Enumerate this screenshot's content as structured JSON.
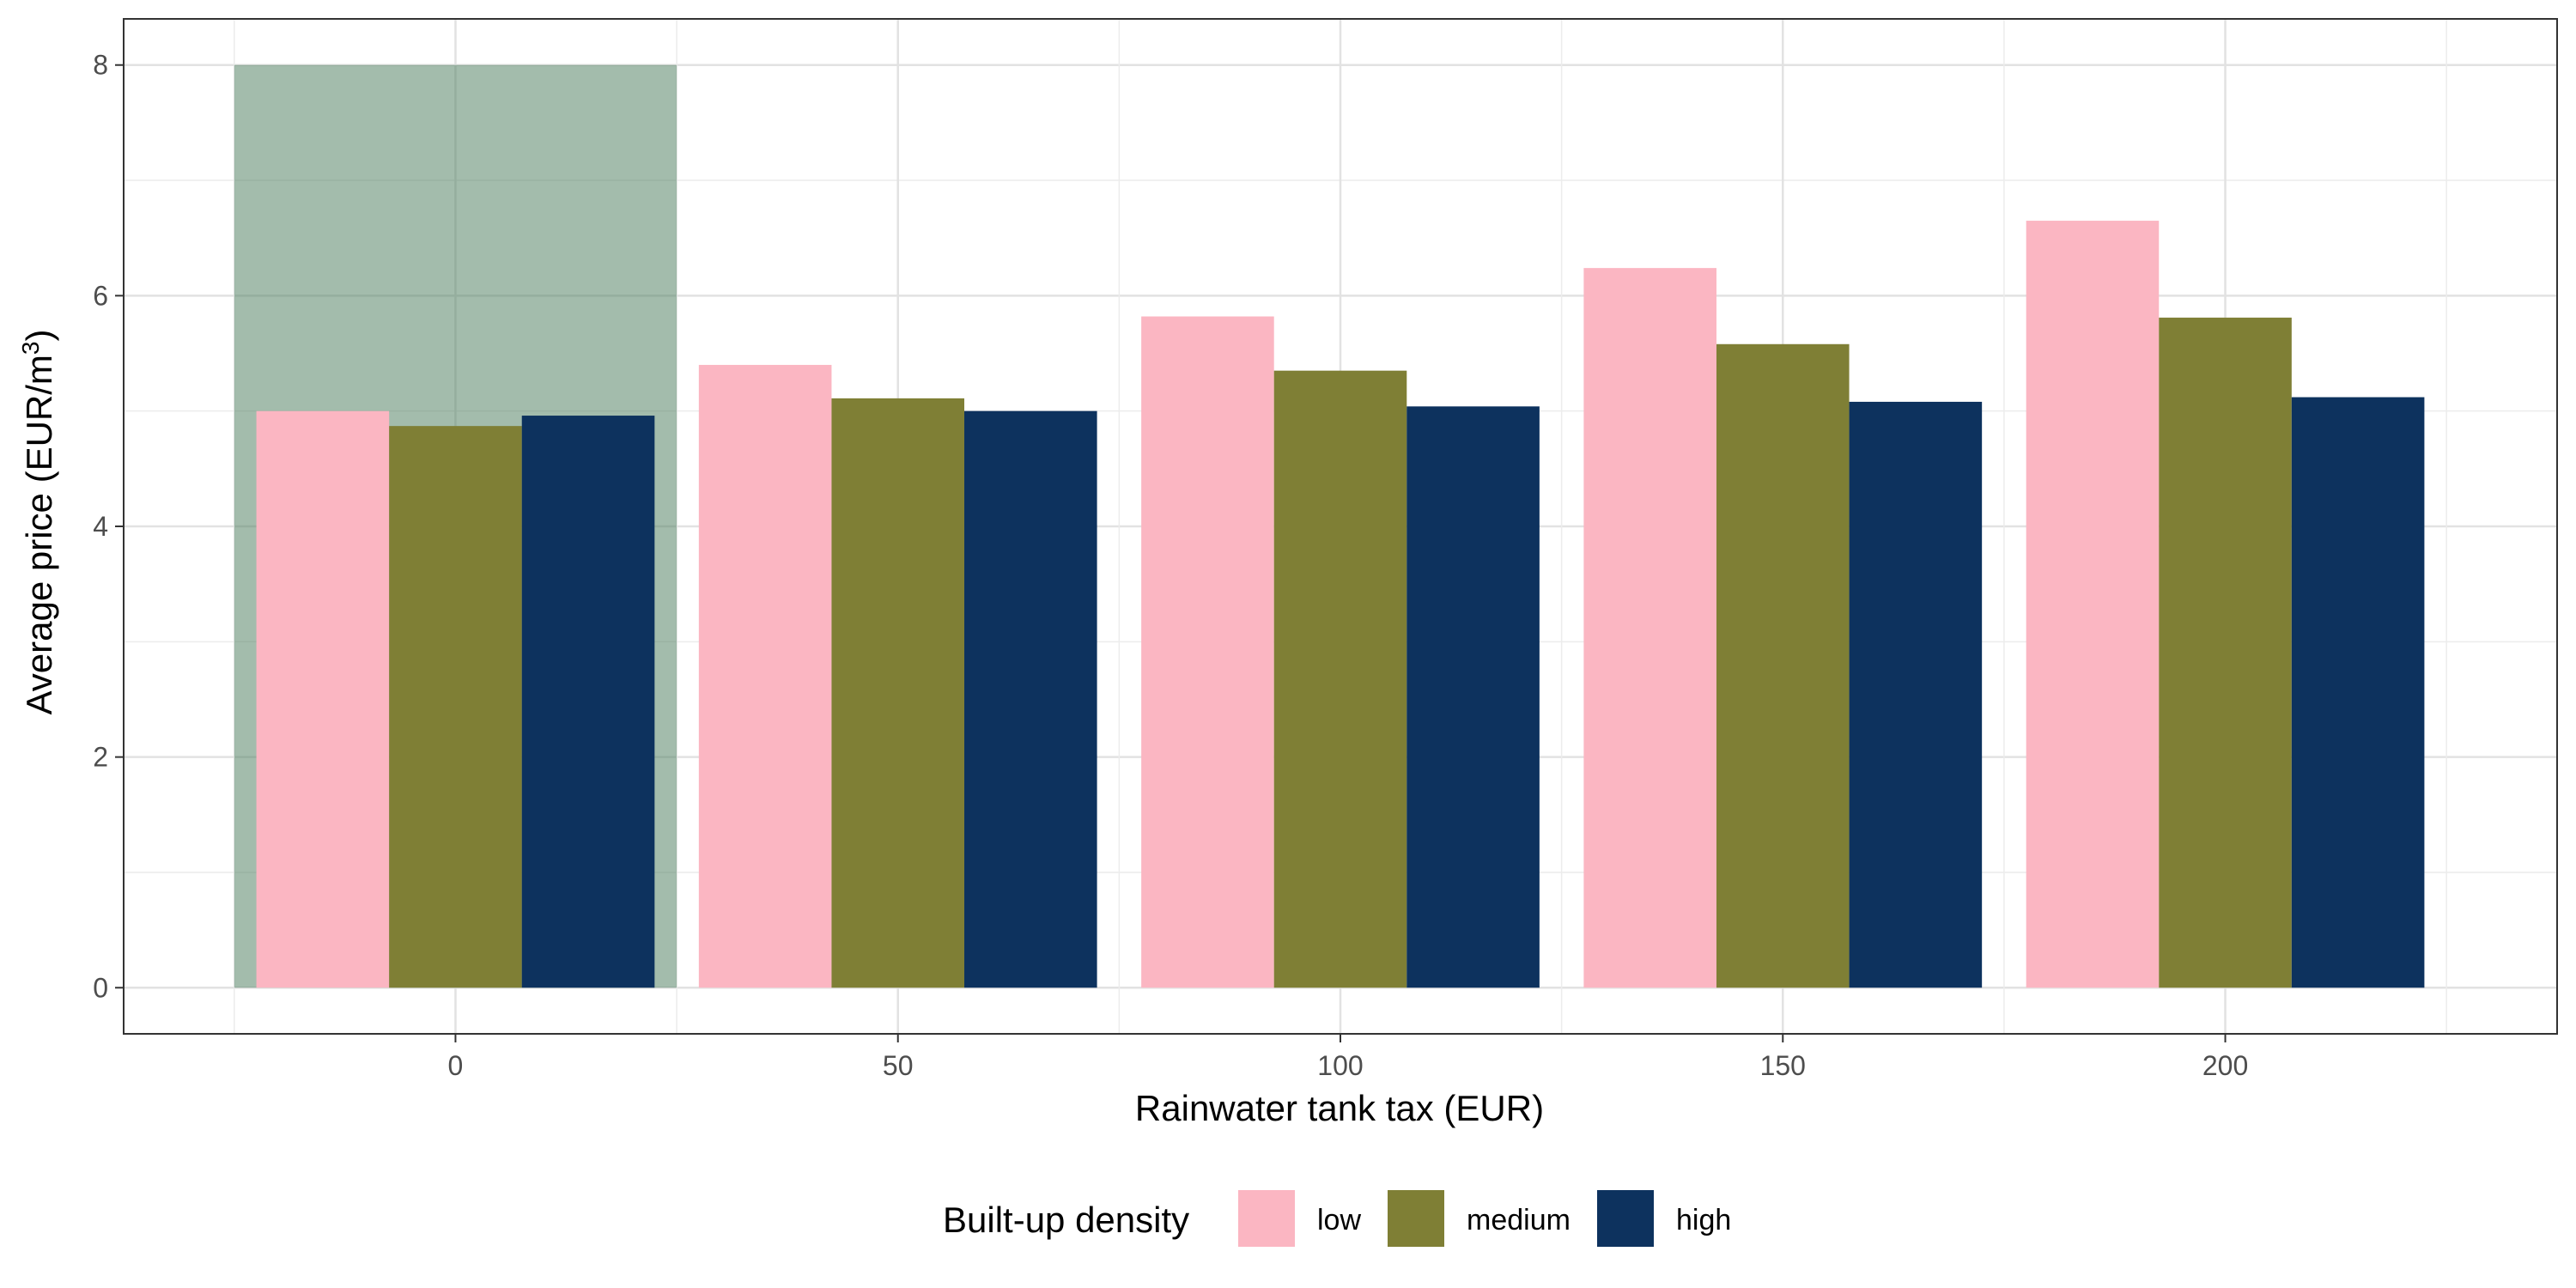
{
  "chart_data": {
    "type": "bar",
    "categories": [
      "0",
      "50",
      "100",
      "150",
      "200"
    ],
    "x": [
      0,
      50,
      100,
      150,
      200
    ],
    "series": [
      {
        "name": "low",
        "color": "#FBB6C2",
        "values": [
          5.0,
          5.4,
          5.82,
          6.24,
          6.65
        ]
      },
      {
        "name": "medium",
        "color": "#7F7F35",
        "values": [
          4.87,
          5.11,
          5.35,
          5.58,
          5.81
        ]
      },
      {
        "name": "high",
        "color": "#0D325E",
        "values": [
          4.96,
          5.0,
          5.04,
          5.08,
          5.12
        ]
      }
    ],
    "highlight": {
      "x_range": [
        -25,
        25
      ],
      "y_range": [
        0,
        8
      ],
      "color": "#4F7F5F",
      "opacity": 0.52
    },
    "xlabel": "Rainwater tank tax (EUR)",
    "ylabel": "Average price (EUR/m",
    "ylabel_superscript": "3",
    "ylabel_suffix": ")",
    "xlim": [
      -37.5,
      237.5
    ],
    "ylim": [
      -0.4,
      8.4
    ],
    "y_ticks": [
      0,
      2,
      4,
      6,
      8
    ],
    "y_tick_labels": [
      "0",
      "2",
      "4",
      "6",
      "8"
    ],
    "x_ticks": [
      0,
      50,
      100,
      150,
      200
    ],
    "x_tick_labels": [
      "0",
      "50",
      "100",
      "150",
      "200"
    ],
    "grid": true,
    "legend": {
      "title": "Built-up density",
      "position": "bottom"
    }
  }
}
